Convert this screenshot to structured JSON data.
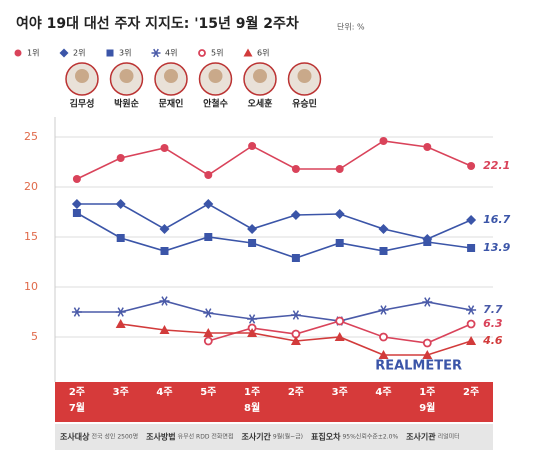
{
  "chart_data": {
    "type": "line",
    "title": "여야 19대 대선 주자 지지도: '15년 9월 2주차",
    "unit": "단위: %",
    "candidates": [
      "김무성",
      "박원순",
      "문재인",
      "안철수",
      "오세훈",
      "유승민"
    ],
    "categories": [
      "2주",
      "3주",
      "4주",
      "5주",
      "1주",
      "2주",
      "3주",
      "4주",
      "1주",
      "2주"
    ],
    "months": [
      "7월",
      null,
      null,
      null,
      "8월",
      null,
      null,
      null,
      "9월",
      null
    ],
    "series": [
      {
        "name": "1위",
        "color": "#d9435a",
        "marker": "circle",
        "values": [
          20.8,
          22.9,
          23.9,
          21.2,
          24.1,
          21.8,
          21.8,
          24.6,
          24.0,
          22.1
        ]
      },
      {
        "name": "2위",
        "color": "#3b55a8",
        "marker": "diamond",
        "values": [
          18.3,
          18.3,
          15.8,
          18.3,
          15.8,
          17.2,
          17.3,
          15.8,
          14.8,
          16.7
        ]
      },
      {
        "name": "3위",
        "color": "#3b55a8",
        "marker": "square",
        "values": [
          17.4,
          14.9,
          13.6,
          15.0,
          14.4,
          12.9,
          14.4,
          13.6,
          14.5,
          13.9
        ]
      },
      {
        "name": "4위",
        "color": "#4a5aa8",
        "marker": "asterisk",
        "values": [
          7.5,
          7.5,
          8.6,
          7.4,
          6.8,
          7.2,
          6.6,
          7.7,
          8.5,
          7.7
        ]
      },
      {
        "name": "5위",
        "color": "#d9435a",
        "marker": "open-circle",
        "values": [
          null,
          null,
          null,
          4.6,
          5.9,
          5.3,
          6.6,
          5.0,
          4.4,
          6.3
        ]
      },
      {
        "name": "6위",
        "color": "#d23b3b",
        "marker": "triangle",
        "values": [
          null,
          6.3,
          5.7,
          5.4,
          5.4,
          4.6,
          5.0,
          3.2,
          3.2,
          4.6
        ]
      }
    ],
    "ylim": [
      0.5,
      27
    ],
    "yticks": [
      5,
      10,
      15,
      20,
      25
    ],
    "grid": true,
    "brand": "REALMETER",
    "footnotes": [
      {
        "key": "조사대상",
        "text": "전국 성인 2500명"
      },
      {
        "key": "조사방법",
        "text": "유무선 RDD 전화면접"
      },
      {
        "key": "조사기간",
        "text": "9월(월~금)"
      },
      {
        "key": "표집오차",
        "text": "95%신뢰수준±2.0%"
      },
      {
        "key": "조사기관",
        "text": "리얼미터"
      }
    ]
  }
}
